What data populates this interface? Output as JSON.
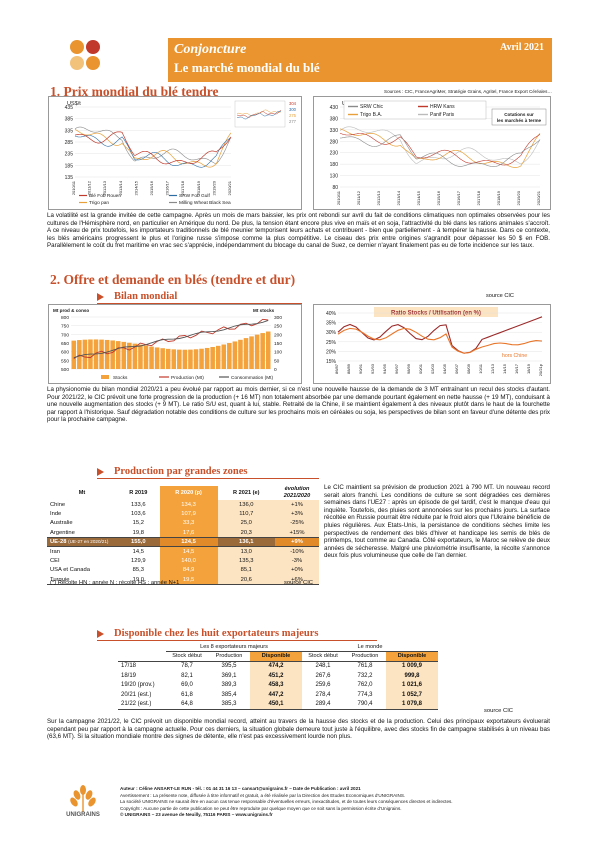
{
  "header": {
    "title": "Conjoncture",
    "subtitle": "Le marché mondial du blé",
    "date": "Avril 2021"
  },
  "section1": {
    "title": "1. Prix mondial du blé tendre",
    "sources": "Sources : CIC, FranceAgriMer, Stratégie Grains, Agritel, France Export Céréales…"
  },
  "chart1": {
    "type": "line",
    "ylabel": "US$/t",
    "yticks": [
      "435",
      "385",
      "335",
      "285",
      "235",
      "185",
      "135"
    ],
    "xticks": [
      "2010/11",
      "2011/12",
      "2012/13",
      "2013/14",
      "2014/15",
      "2015/16",
      "2016/17",
      "2017/18",
      "2018/19",
      "2019/20",
      "2020/21"
    ],
    "legend": [
      "Blé Fob Rouen",
      "SRW Fob Gulf",
      "Trigo pan",
      "Milling Wheat Black Sea"
    ],
    "inset_labels": [
      "304",
      "300",
      "275",
      "277"
    ],
    "colors": {
      "rouen": "#c0392b",
      "srw": "#2e6da4",
      "trigo": "#e8a13a",
      "black_sea": "#8a8a8a"
    }
  },
  "chart2": {
    "type": "line",
    "ylabel": "US$/t",
    "yticks": [
      "430",
      "380",
      "330",
      "280",
      "230",
      "180",
      "130",
      "80"
    ],
    "xticks": [
      "2010/11",
      "2011/12",
      "2012/13",
      "2013/14",
      "2014/15",
      "2015/16",
      "2016/17",
      "2017/18",
      "2018/19",
      "2019/20",
      "2020/21"
    ],
    "legend": [
      "SRW Chic",
      "HRW Kans",
      "Trigo B.A.",
      "Panif Paris"
    ],
    "note": "Cotations sur les marchés à terme",
    "colors": {
      "srw": "#8a8a8a",
      "hrw": "#c0392b",
      "trigo": "#e8a13a",
      "panif": "#bbbbbb"
    }
  },
  "para1": "La volatilité est la grande invitée de cette campagne. Après un mois de mars baissier, les prix ont rebondi sur avril du fait de conditions climatiques non optimales observées pour les cultures de l'Hémisphère nord, en particulier en Amérique du nord. De plus, la tension étant encore plus vive en maïs et en soja, l'attractivité du blé dans les rations animales s'accroît. A ce niveau de prix toutefois, les importateurs traditionnels de blé meunier temporisent leurs achats et contribuent - bien que partiellement - à tempérer la hausse. Dans ce contexte, les blés américains progressent le plus et l'origine russe s'impose comme la plus compétitive. Le ciseau des prix entre origines s'agrandit pour dépasser les 50 $ en FOB. Parallèlement le coût du fret maritime en vrac sec s'apprécie, indépendamment du blocage du canal de Suez, ce dernier n'ayant finalement pas eu de forte incidence sur les taux.",
  "section2": {
    "title": "2. Offre et demande en blés (tendre et dur)",
    "bilan_title": "Bilan mondial",
    "source": "source CIC"
  },
  "chart3": {
    "type": "bar",
    "ylabel_left": "Mt prod & conso",
    "ylabel_right": "Mt stocks",
    "yticks_left": [
      "800",
      "750",
      "700",
      "650",
      "600",
      "550",
      "500"
    ],
    "yticks_right": [
      "300",
      "250",
      "200",
      "150",
      "100",
      "50",
      "0"
    ],
    "legend": [
      "Stocks",
      "Production (Mt)",
      "Consommation (Mt)"
    ],
    "colors": {
      "stocks": "#f4a33c",
      "prod": "#c0392b",
      "conso": "#555555"
    }
  },
  "chart4": {
    "type": "line",
    "title": "Ratio Stocks / Utilisation (en %)",
    "yticks": [
      "40%",
      "35%",
      "30%",
      "25%",
      "20%",
      "15%"
    ],
    "xticks": [
      "86/87",
      "88/89",
      "90/91",
      "92/93",
      "94/95",
      "96/97",
      "98/99",
      "00/01",
      "02/03",
      "04/05",
      "06/07",
      "08/09",
      "10/11",
      "12/13",
      "14/15",
      "16/17",
      "18/19",
      "20/21p"
    ],
    "series_labels": [
      "hors Chine"
    ],
    "colors": {
      "total": "#9b2a2a",
      "hors_chine": "#e8762a"
    }
  },
  "para2": "La physionomie du bilan mondial 2020/21 a peu évolué par rapport au mois dernier, si ce n'est une nouvelle hausse de la demande de 3 MT entraînant un recul des stocks d'autant. Pour 2021/22, le CIC prévoit une forte progression de la production (+ 16 MT) non totalement absorbée par une demande pourtant également en nette hausse (+ 19 MT), conduisant à une nouvelle augmentation des stocks (+ 9 MT). Le ratio S/U est, quant à lui, stable. Retraité de la Chine, il se maintient également à des niveaux plutôt dans le haut de la fourchette par rapport à l'historique. Sauf dégradation notable des conditions de culture sur les prochains mois en céréales ou soja, les perspectives de bilan sont en faveur d'une détente des prix pour la prochaine campagne.",
  "production": {
    "title": "Production par grandes zones",
    "headers": [
      "Mt",
      "R 2019",
      "R 2020 (p)",
      "R 2021 (e)",
      "évolution 2021/2020"
    ],
    "rows": [
      {
        "name": "Chine",
        "r2019": "133,6",
        "r2020": "134,3",
        "r2021": "136,0",
        "evo": "+1%"
      },
      {
        "name": "Inde",
        "r2019": "103,6",
        "r2020": "107,9",
        "r2021": "110,7",
        "evo": "+3%"
      },
      {
        "name": "Australie",
        "r2019": "15,2",
        "r2020": "33,3",
        "r2021": "25,0",
        "evo": "-25%"
      },
      {
        "name": "Argentine",
        "r2019": "19,8",
        "r2020": "17,6",
        "r2021": "20,3",
        "evo": "+15%"
      },
      {
        "name": "UE-28",
        "sub": "(UE-27 en 2020/21)",
        "r2019": "155,0",
        "r2020": "124,5",
        "r2021": "136,1",
        "evo": "+9%"
      },
      {
        "name": "Iran",
        "r2019": "14,5",
        "r2020": "14,5",
        "r2021": "13,0",
        "evo": "-10%"
      },
      {
        "name": "CEI",
        "r2019": "129,9",
        "r2020": "140,0",
        "r2021": "135,3",
        "evo": "-3%"
      },
      {
        "name": "USA et Canada",
        "r2019": "85,3",
        "r2020": "84,9",
        "r2021": "85,1",
        "evo": "+0%"
      },
      {
        "name": "Turquie",
        "r2019": "19,0",
        "r2020": "19,5",
        "r2021": "20,6",
        "evo": "+6%"
      }
    ],
    "note": "(*) Récolte HN : année N ; récolte HS : année N+1",
    "source": "source CIC",
    "text": "Le CIC maintient sa prévision de production 2021 à 790 MT. Un nouveau record serait alors franchi. Les conditions de culture se sont dégradées ces dernières semaines dans l'UE27 : après un épisode de gel tardif, c'est le manque d'eau qui inquiète. Toutefois, des pluies sont annoncées sur les prochains jours. La surface récoltée en Russie pourrait être réduite par le froid alors que l'Ukraine bénéficie de pluies régulières. Aux Etats-Unis, la persistance de conditions sèches limite les perspectives de rendement des blés d'hiver et handicape les semis de blés de printemps, tout comme au Canada. Côté exportateurs, le Maroc se relève de deux années de sécheresse. Malgré une pluviométrie insuffisante, la récolte s'annonce deux fois plus volumineuse que celle de l'an dernier."
  },
  "disponible": {
    "title": "Disponible chez les huit exportateurs majeurs",
    "group1": "Les 8 exportateurs majeurs",
    "group2": "Le monde",
    "cols": [
      "Stock début",
      "Production",
      "Disponible",
      "Stock début",
      "Production",
      "Disponible"
    ],
    "rows": [
      {
        "year": "17/18",
        "c": [
          "78,7",
          "395,5",
          "474,2",
          "248,1",
          "761,8",
          "1 009,9"
        ]
      },
      {
        "year": "18/19",
        "c": [
          "82,1",
          "369,1",
          "451,2",
          "267,6",
          "732,2",
          "999,8"
        ]
      },
      {
        "year": "19/20 (prov.)",
        "c": [
          "69,0",
          "389,3",
          "458,3",
          "259,6",
          "762,0",
          "1 021,6"
        ]
      },
      {
        "year": "20/21 (est.)",
        "c": [
          "61,8",
          "385,4",
          "447,2",
          "278,4",
          "774,3",
          "1 052,7"
        ]
      },
      {
        "year": "21/22 (est.)",
        "c": [
          "64,8",
          "385,3",
          "450,1",
          "289,4",
          "790,4",
          "1 079,8"
        ]
      }
    ],
    "source": "source CIC",
    "text": "Sur la campagne 2021/22, le CIC prévoit un disponible mondial record, atteint au travers de la hausse des stocks et de la production. Celui des principaux exportateurs évoluerait cependant peu par rapport à la campagne actuelle. Pour ces derniers, la situation globale demeure tout juste à l'équilibre, avec des stocks fin de campagne stabilisés à un niveau bas (63,6 MT). Si la situation mondiale montre des signes de détente, elle n'est pas excessivement lourde non plus."
  },
  "footer": {
    "l1": "Auteur : Céline ANSART-LE RUN - tél. : 01 44 31 16 13 – cansart@unigrains.fr – Date de Publication : avril 2021",
    "l2": "Avertissement : La présente note, diffusée à titre informatif et gratuit, a été réalisée par la Direction des Etudes Economiques d'UNIGRAINS.",
    "l3": "La société UNIGRAINS ne saurait être en aucun cas tenue responsable d'éventuelles erreurs, inexactitudes, et de toutes leurs conséquences directes et indirectes.",
    "l4": "Copyright : Aucune partie de cette publication ne peut être reproduite par quelque moyen que ce soit sans la permission écrite d'Unigrains.",
    "l5": "© UNIGRAINS – 23 avenue de Neuilly, 75116 PARIS – www.unigrains.fr",
    "logo_text": "UNIGRAINS"
  }
}
